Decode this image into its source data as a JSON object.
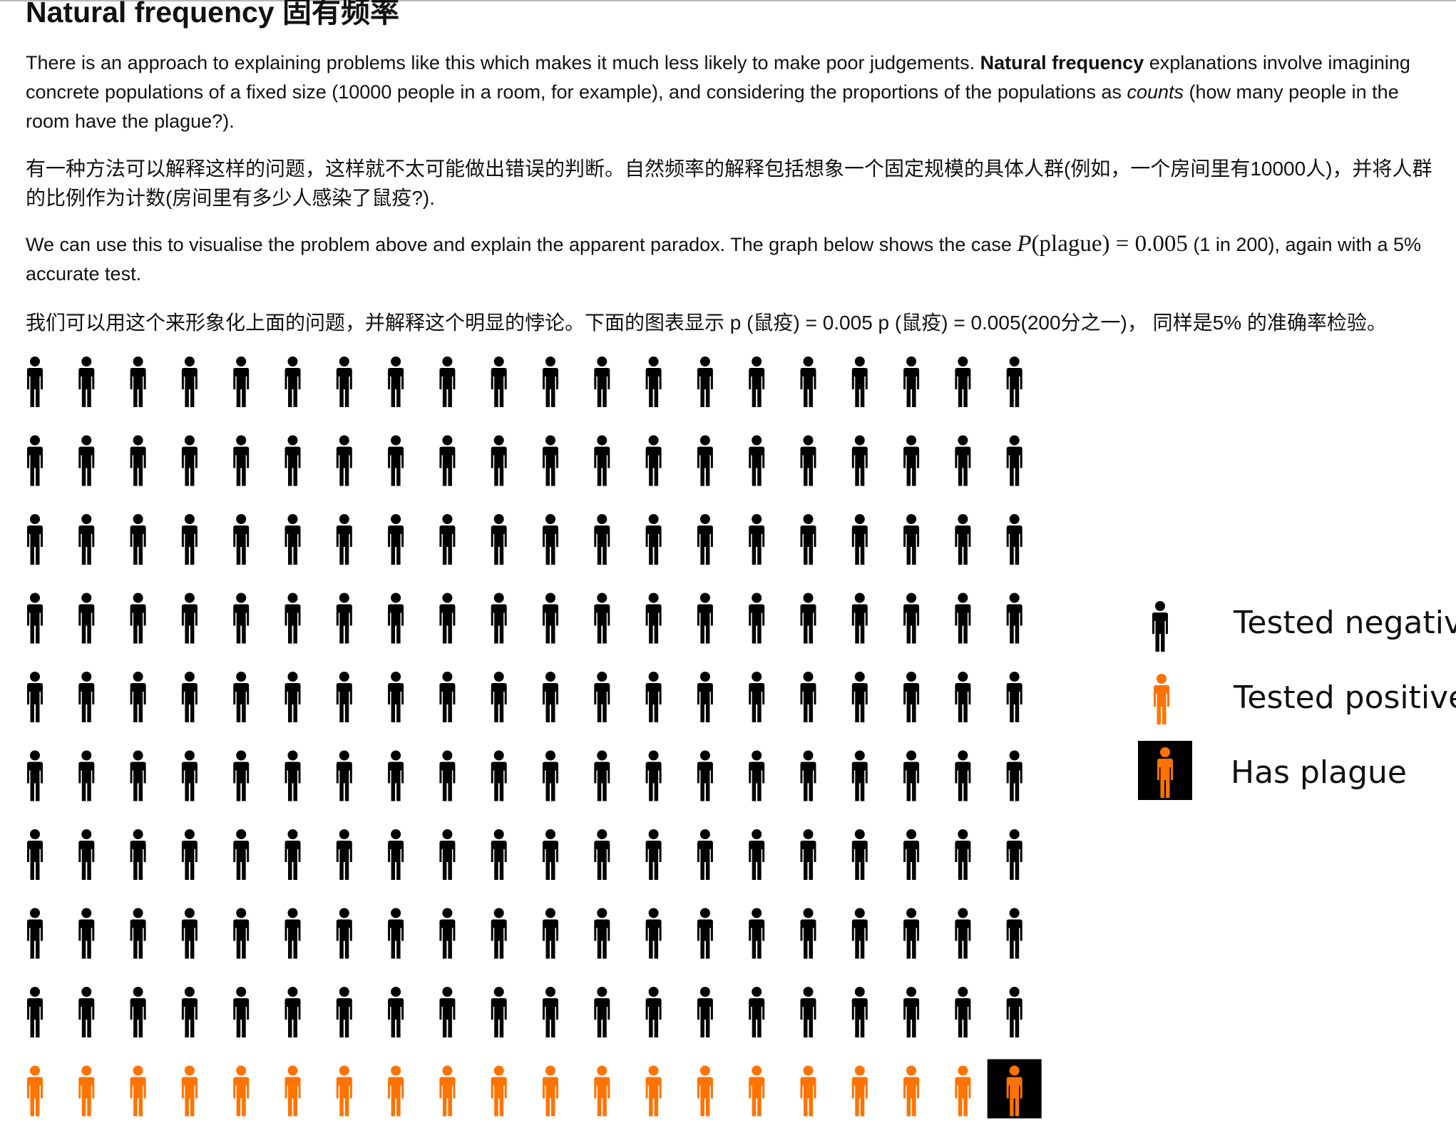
{
  "title": "Natural frequency 固有频率",
  "para1": {
    "before": "There is an approach to explaining problems like this which makes it much less likely to make poor judgements. ",
    "bold": "Natural frequency",
    "middle": " explanations involve imagining concrete populations of a fixed size (10000 people in a room, for example), and considering the proportions of the populations as ",
    "italic": "counts",
    "after": " (how many people in the room have the plague?)."
  },
  "para2": "有一种方法可以解释这样的问题，这样就不太可能做出错误的判断。自然频率的解释包括想象一个固定规模的具体人群(例如，一个房间里有10000人)，并将人群的比例作为计数(房间里有多少人感染了鼠疫?).",
  "para3": {
    "before": "We can use this to visualise the problem above and explain the apparent paradox. The graph below shows the case ",
    "math_p": "P",
    "math_arg": "(plague)",
    "math_eq": " = ",
    "math_val": "0.005",
    "after": " (1 in 200), again with a 5% accurate test."
  },
  "para4": "我们可以用这个来形象化上面的问题，并解释这个明显的悖论。下面的图表显示 p (鼠疫) = 0.005 p (鼠疫) = 0.005(200分之一)， 同样是5% 的准确率检验。",
  "pictogram": {
    "rows": 10,
    "cols": 20,
    "total": 200,
    "tested_positive": 20,
    "has_plague": 1,
    "colors": {
      "negative": "#000000",
      "positive": "#ff7300",
      "plague_bg": "#000000"
    }
  },
  "legend": [
    {
      "label": "Tested negative",
      "kind": "negative"
    },
    {
      "label": "Tested positive",
      "kind": "positive"
    },
    {
      "label": "Has plague",
      "kind": "plague"
    }
  ]
}
